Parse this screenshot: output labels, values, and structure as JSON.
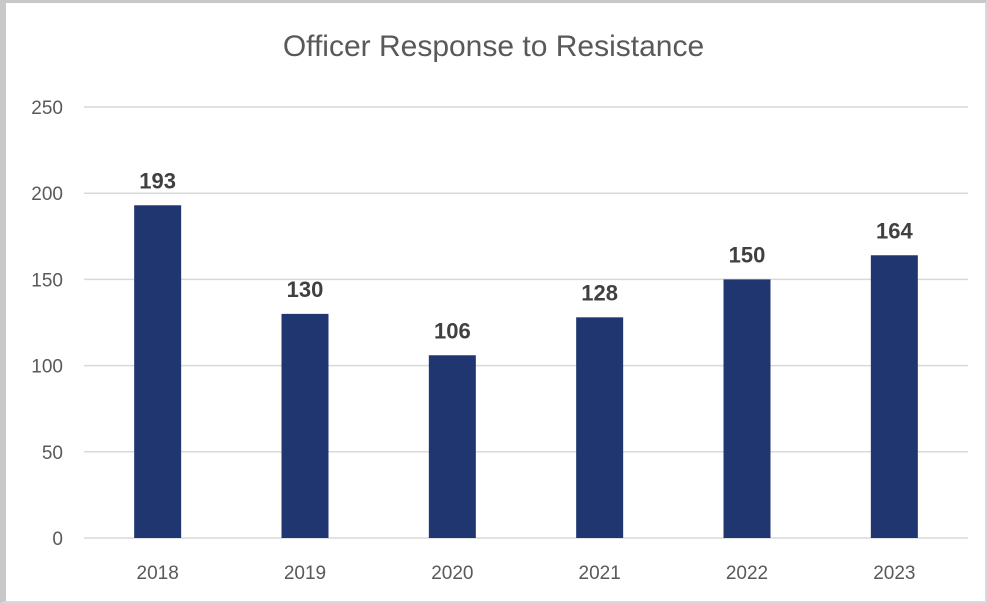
{
  "chart_data": {
    "type": "bar",
    "title": "Officer Response to Resistance",
    "xlabel": "",
    "ylabel": "",
    "categories": [
      "2018",
      "2019",
      "2020",
      "2021",
      "2022",
      "2023"
    ],
    "values": [
      193,
      130,
      106,
      128,
      150,
      164
    ],
    "data_labels": [
      "193",
      "130",
      "106",
      "128",
      "150",
      "164"
    ],
    "y_ticks": [
      "0",
      "50",
      "100",
      "150",
      "200",
      "250"
    ],
    "y_tick_values": [
      0,
      50,
      100,
      150,
      200,
      250
    ],
    "ylim": [
      0,
      250
    ],
    "grid": true,
    "legend": "none",
    "colors": {
      "bar": "#203670",
      "grid": "#d9d9d9",
      "text": "#595959",
      "data_label": "#404040"
    }
  }
}
